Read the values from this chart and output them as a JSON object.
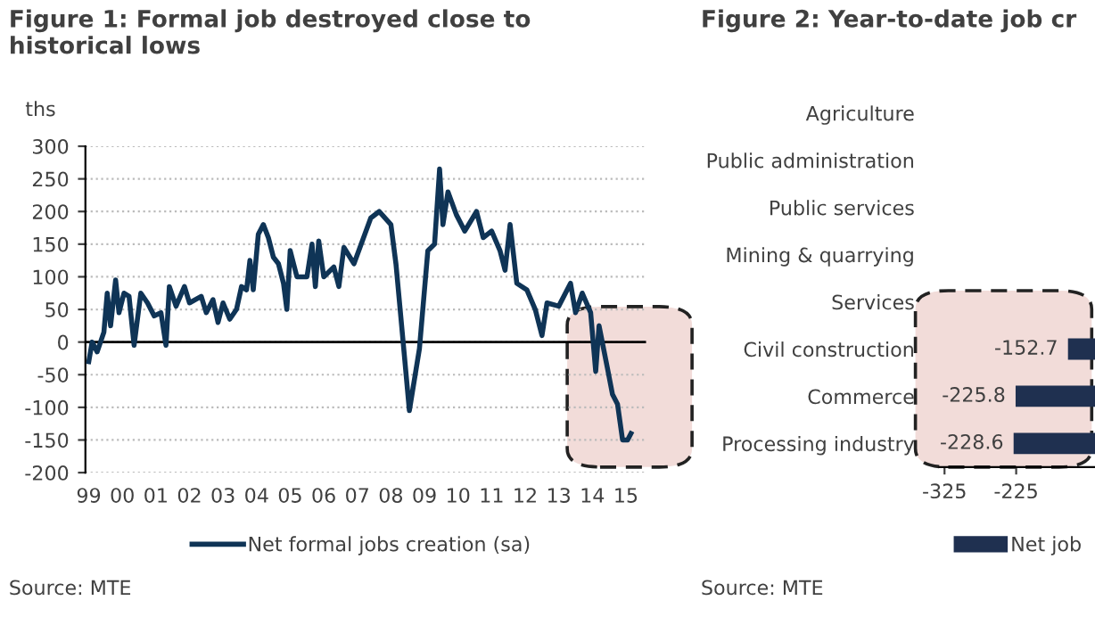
{
  "chart_data": [
    {
      "type": "line",
      "title": "Figure 1: Formal job destroyed close to historical lows",
      "ylabel": "ths",
      "x": [
        1999.0,
        1999.1,
        1999.25,
        1999.45,
        1999.55,
        1999.65,
        1999.8,
        1999.9,
        2000.05,
        2000.2,
        2000.35,
        2000.55,
        2000.75,
        2000.95,
        2001.15,
        2001.3,
        2001.4,
        2001.6,
        2001.85,
        2002.0,
        2002.35,
        2002.5,
        2002.7,
        2002.85,
        2003.0,
        2003.2,
        2003.4,
        2003.55,
        2003.7,
        2003.8,
        2003.9,
        2004.05,
        2004.2,
        2004.35,
        2004.5,
        2004.65,
        2004.8,
        2004.9,
        2005.0,
        2005.2,
        2005.5,
        2005.65,
        2005.75,
        2005.85,
        2006.0,
        2006.3,
        2006.45,
        2006.6,
        2006.9,
        2007.4,
        2007.65,
        2008.0,
        2008.15,
        2008.4,
        2008.55,
        2008.85,
        2009.1,
        2009.3,
        2009.45,
        2009.55,
        2009.7,
        2009.95,
        2010.2,
        2010.55,
        2010.75,
        2011.0,
        2011.25,
        2011.4,
        2011.55,
        2011.75,
        2012.05,
        2012.3,
        2012.5,
        2012.65,
        2013.0,
        2013.35,
        2013.5,
        2013.7,
        2013.95,
        2014.1,
        2014.2,
        2014.45,
        2014.6,
        2014.75,
        2014.9,
        2015.05,
        2015.15
      ],
      "series": [
        {
          "name": "Net formal jobs creation (sa)",
          "color": "#0f3456",
          "values": [
            -30,
            0,
            -15,
            15,
            75,
            25,
            95,
            45,
            75,
            70,
            -5,
            75,
            60,
            40,
            45,
            -5,
            85,
            55,
            85,
            60,
            70,
            45,
            65,
            30,
            60,
            35,
            50,
            85,
            80,
            125,
            80,
            165,
            180,
            160,
            130,
            120,
            90,
            50,
            140,
            100,
            100,
            150,
            85,
            155,
            100,
            115,
            85,
            145,
            120,
            190,
            200,
            180,
            120,
            -20,
            -105,
            -10,
            140,
            150,
            265,
            180,
            230,
            195,
            170,
            200,
            160,
            170,
            140,
            110,
            180,
            90,
            80,
            50,
            10,
            60,
            55,
            90,
            45,
            75,
            45,
            -45,
            25,
            -40,
            -80,
            -95,
            -150,
            -150,
            -140
          ]
        }
      ],
      "xlim": [
        1998.9,
        2015.6
      ],
      "xticks": [
        {
          "value": 1999,
          "label": "99"
        },
        {
          "value": 2000,
          "label": "00"
        },
        {
          "value": 2001,
          "label": "01"
        },
        {
          "value": 2002,
          "label": "02"
        },
        {
          "value": 2003,
          "label": "03"
        },
        {
          "value": 2004,
          "label": "04"
        },
        {
          "value": 2005,
          "label": "05"
        },
        {
          "value": 2006,
          "label": "06"
        },
        {
          "value": 2007,
          "label": "07"
        },
        {
          "value": 2008,
          "label": "08"
        },
        {
          "value": 2009,
          "label": "09"
        },
        {
          "value": 2010,
          "label": "10"
        },
        {
          "value": 2011,
          "label": "11"
        },
        {
          "value": 2012,
          "label": "12"
        },
        {
          "value": 2013,
          "label": "13"
        },
        {
          "value": 2014,
          "label": "14"
        },
        {
          "value": 2015,
          "label": "15"
        }
      ],
      "ylim": [
        -200,
        300
      ],
      "yticks": [
        -200,
        -150,
        -100,
        -50,
        0,
        50,
        100,
        150,
        200,
        250,
        300
      ],
      "grid": "y",
      "legend": "bottom",
      "ref_lines": [
        {
          "axis": "y",
          "value": 0,
          "color": "#000000"
        }
      ],
      "annotations": [
        "Source: MTE"
      ]
    },
    {
      "type": "bar",
      "orientation": "horizontal",
      "title": "Figure 2: Year-to-date job cr",
      "categories": [
        "Agriculture",
        "Public administration",
        "Public services",
        "Mining & quarrying",
        "Services",
        "Civil construction",
        "Commerce",
        "Processing industry"
      ],
      "series": [
        {
          "name": "Net job",
          "color": "#1f3050",
          "values": [
            null,
            null,
            null,
            null,
            null,
            -152.7,
            -225.8,
            -228.6
          ]
        }
      ],
      "xlim": [
        -332,
        -115
      ],
      "xticks": [
        -325,
        -225
      ],
      "data_labels": true,
      "legend": "bottom",
      "annotations": [
        "Source: MTE"
      ]
    }
  ]
}
